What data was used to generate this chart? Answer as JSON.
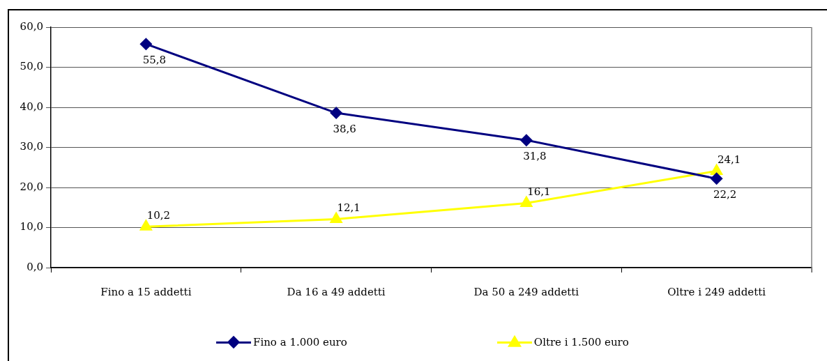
{
  "chart_data": {
    "type": "line",
    "categories": [
      "Fino a 15 addetti",
      "Da 16 a 49 addetti",
      "Da 50 a 249 addetti",
      "Oltre i 249 addetti"
    ],
    "series": [
      {
        "name": "Fino a 1.000 euro",
        "color": "#000080",
        "marker": "diamond",
        "values": [
          55.8,
          38.6,
          31.8,
          22.2
        ],
        "value_labels": [
          "55,8",
          "38,6",
          "31,8",
          "22,2"
        ]
      },
      {
        "name": "Oltre i 1.500 euro",
        "color": "#ffff00",
        "marker": "triangle",
        "values": [
          10.2,
          12.1,
          16.1,
          24.1
        ],
        "value_labels": [
          "10,2",
          "12,1",
          "16,1",
          "24,1"
        ]
      }
    ],
    "ylim": [
      0,
      60
    ],
    "yticks": [
      {
        "value": 0,
        "label": "0,0"
      },
      {
        "value": 10,
        "label": "10,0"
      },
      {
        "value": 20,
        "label": "20,0"
      },
      {
        "value": 30,
        "label": "30,0"
      },
      {
        "value": 40,
        "label": "40,0"
      },
      {
        "value": 50,
        "label": "50,0"
      },
      {
        "value": 60,
        "label": "60,0"
      }
    ],
    "grid": "y",
    "legend": "bottom"
  }
}
